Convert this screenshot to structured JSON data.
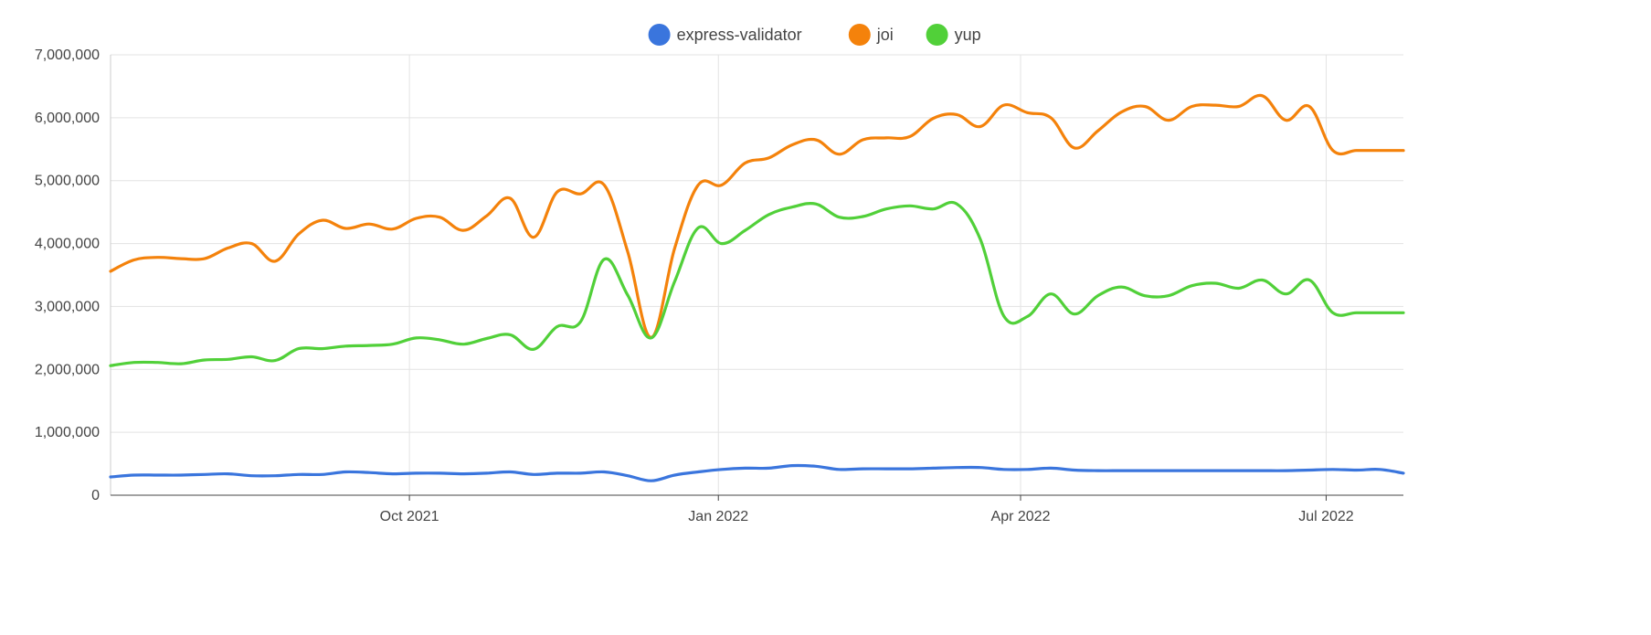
{
  "chart_data": {
    "type": "line",
    "title": "",
    "xlabel": "",
    "ylabel": "",
    "ylim": [
      0,
      7000000
    ],
    "y_ticks": [
      0,
      1000000,
      2000000,
      3000000,
      4000000,
      5000000,
      6000000,
      7000000
    ],
    "y_tick_labels": [
      "0",
      "1,000,000",
      "2,000,000",
      "3,000,000",
      "4,000,000",
      "5,000,000",
      "6,000,000",
      "7,000,000"
    ],
    "x_range": [
      "2021-07-04",
      "2022-07-24"
    ],
    "x_ticks": [
      {
        "label": "Oct 2021",
        "date": "2021-10-01"
      },
      {
        "label": "Jan 2022",
        "date": "2022-01-01"
      },
      {
        "label": "Apr 2022",
        "date": "2022-04-01"
      },
      {
        "label": "Jul 2022",
        "date": "2022-07-01"
      }
    ],
    "grid": true,
    "legend_position": "top",
    "x": [
      "2021-07-04",
      "2021-07-11",
      "2021-07-18",
      "2021-07-25",
      "2021-08-01",
      "2021-08-08",
      "2021-08-15",
      "2021-08-22",
      "2021-08-29",
      "2021-09-05",
      "2021-09-12",
      "2021-09-19",
      "2021-09-26",
      "2021-10-03",
      "2021-10-10",
      "2021-10-17",
      "2021-10-24",
      "2021-10-31",
      "2021-11-07",
      "2021-11-14",
      "2021-11-21",
      "2021-11-28",
      "2021-12-05",
      "2021-12-12",
      "2021-12-19",
      "2021-12-26",
      "2022-01-02",
      "2022-01-09",
      "2022-01-16",
      "2022-01-23",
      "2022-01-30",
      "2022-02-06",
      "2022-02-13",
      "2022-02-20",
      "2022-02-27",
      "2022-03-06",
      "2022-03-13",
      "2022-03-20",
      "2022-03-27",
      "2022-04-03",
      "2022-04-10",
      "2022-04-17",
      "2022-04-24",
      "2022-05-01",
      "2022-05-08",
      "2022-05-15",
      "2022-05-22",
      "2022-05-29",
      "2022-06-05",
      "2022-06-12",
      "2022-06-19",
      "2022-06-26",
      "2022-07-03",
      "2022-07-10",
      "2022-07-17",
      "2022-07-24"
    ],
    "series": [
      {
        "name": "express-validator",
        "color": "#3a75dd",
        "values": [
          290000,
          320000,
          320000,
          320000,
          330000,
          340000,
          310000,
          310000,
          330000,
          330000,
          370000,
          360000,
          340000,
          350000,
          350000,
          340000,
          350000,
          370000,
          330000,
          350000,
          350000,
          370000,
          310000,
          230000,
          320000,
          370000,
          410000,
          430000,
          430000,
          470000,
          460000,
          410000,
          420000,
          420000,
          420000,
          430000,
          440000,
          440000,
          410000,
          410000,
          430000,
          400000,
          390000,
          390000,
          390000,
          390000,
          390000,
          390000,
          390000,
          390000,
          390000,
          400000,
          410000,
          400000,
          410000,
          350000
        ]
      },
      {
        "name": "joi",
        "color": "#f4820b",
        "values": [
          3560000,
          3740000,
          3780000,
          3760000,
          3760000,
          3930000,
          4000000,
          3720000,
          4150000,
          4370000,
          4240000,
          4310000,
          4230000,
          4400000,
          4420000,
          4210000,
          4440000,
          4720000,
          4100000,
          4820000,
          4790000,
          4930000,
          3870000,
          2510000,
          3930000,
          4930000,
          4930000,
          5280000,
          5360000,
          5570000,
          5650000,
          5420000,
          5650000,
          5680000,
          5700000,
          5990000,
          6050000,
          5860000,
          6200000,
          6080000,
          6000000,
          5520000,
          5790000,
          6090000,
          6180000,
          5960000,
          6180000,
          6200000,
          6180000,
          6350000,
          5960000,
          6180000,
          5480000,
          5480000,
          5480000,
          5480000
        ]
      },
      {
        "name": "yup",
        "color": "#51d039",
        "values": [
          2060000,
          2110000,
          2110000,
          2090000,
          2150000,
          2160000,
          2200000,
          2140000,
          2330000,
          2330000,
          2370000,
          2380000,
          2400000,
          2500000,
          2470000,
          2400000,
          2490000,
          2550000,
          2320000,
          2680000,
          2760000,
          3750000,
          3180000,
          2500000,
          3400000,
          4250000,
          4000000,
          4210000,
          4460000,
          4580000,
          4630000,
          4420000,
          4430000,
          4550000,
          4600000,
          4550000,
          4630000,
          4070000,
          2850000,
          2840000,
          3200000,
          2880000,
          3170000,
          3310000,
          3170000,
          3170000,
          3330000,
          3370000,
          3290000,
          3420000,
          3200000,
          3420000,
          2900000,
          2900000,
          2900000,
          2900000
        ]
      }
    ]
  }
}
